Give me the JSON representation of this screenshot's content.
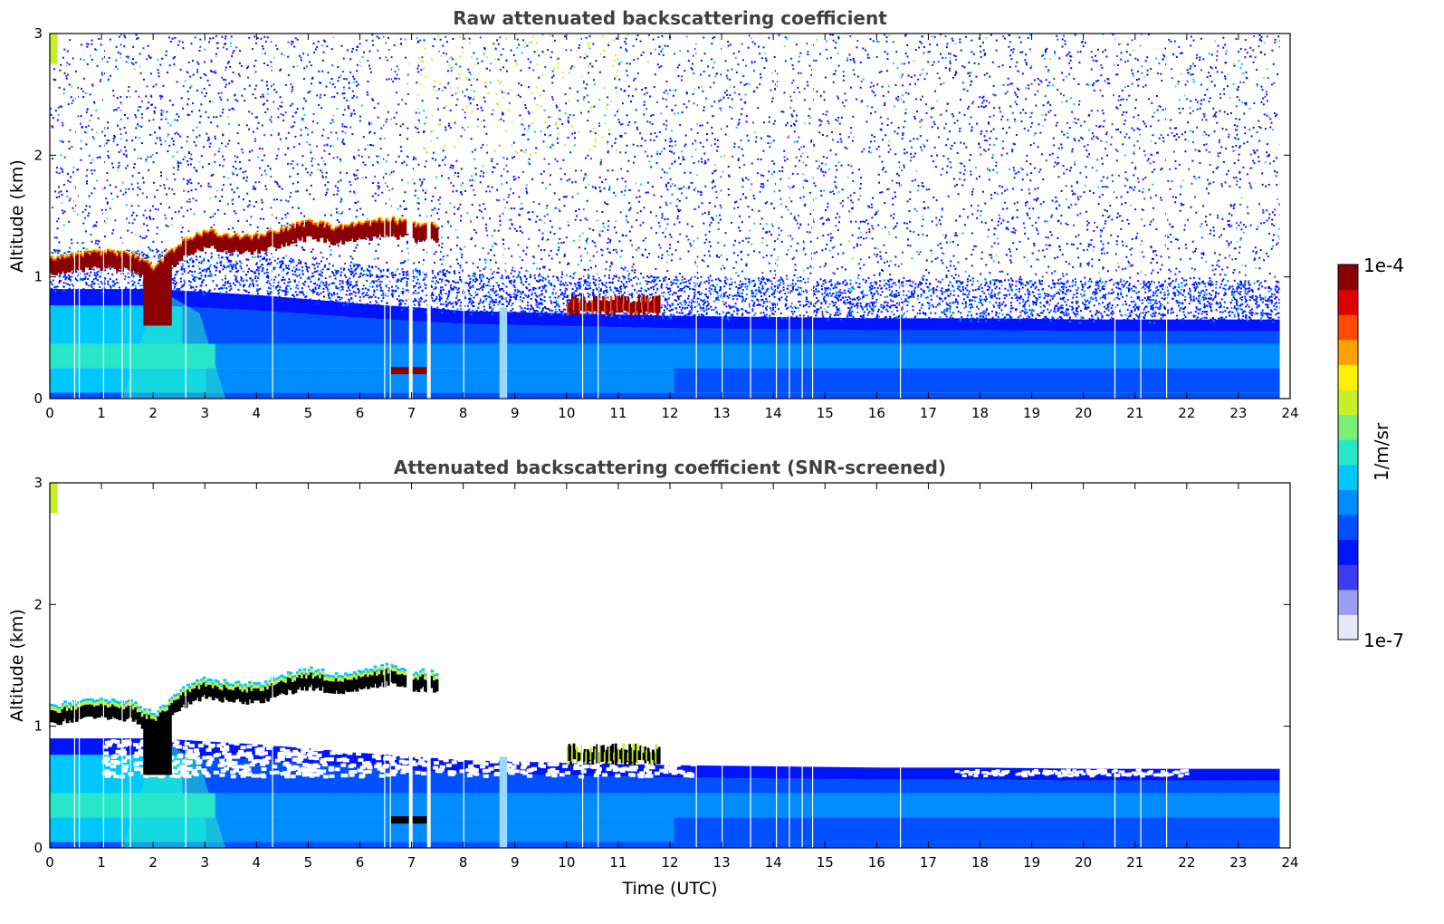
{
  "chart_data": [
    {
      "type": "heatmap",
      "title": "Raw attenuated backscattering coefficient",
      "xlabel": "",
      "ylabel": "Altitude (km)",
      "xlim": [
        0,
        24
      ],
      "ylim": [
        0,
        3
      ],
      "xticks": [
        "0",
        "1",
        "2",
        "3",
        "4",
        "5",
        "6",
        "7",
        "8",
        "9",
        "10",
        "11",
        "12",
        "13",
        "14",
        "15",
        "16",
        "17",
        "18",
        "19",
        "20",
        "21",
        "22",
        "23",
        "24"
      ],
      "yticks": [
        "0",
        "1",
        "2",
        "3"
      ],
      "screened": false,
      "cloud_layer": {
        "x": [
          0,
          0.5,
          1,
          1.5,
          2,
          2.5,
          3,
          3.5,
          4,
          4.5,
          5,
          5.5,
          6,
          6.5,
          7,
          7.5
        ],
        "y": [
          1.02,
          1.05,
          1.07,
          1.06,
          0.95,
          1.15,
          1.25,
          1.2,
          1.2,
          1.27,
          1.32,
          1.28,
          1.3,
          1.35,
          1.3,
          1.3
        ]
      },
      "mid_cloud": {
        "x": [
          10,
          11.8
        ],
        "y": [
          0.68,
          0.86
        ]
      },
      "boundary_layer_top": {
        "x": [
          0,
          2,
          4,
          6,
          8,
          10,
          12,
          14,
          16,
          18,
          20,
          22,
          23.8
        ],
        "y": [
          0.9,
          0.9,
          0.85,
          0.78,
          0.72,
          0.7,
          0.68,
          0.67,
          0.66,
          0.66,
          0.65,
          0.65,
          0.65
        ]
      },
      "data_gaps": [
        0.47,
        0.56,
        1.03,
        1.39,
        1.55,
        2.62,
        4.3,
        6.47,
        6.58,
        6.95,
        7.3,
        8.0,
        8.8,
        10.3,
        10.6,
        12.5,
        13.0,
        13.55,
        14.05,
        14.3,
        14.55,
        14.75,
        16.45,
        20.6,
        21.1,
        21.6
      ],
      "data_end": 23.8
    },
    {
      "type": "heatmap",
      "title": "Attenuated backscattering coefficient (SNR-screened)",
      "xlabel": "Time (UTC)",
      "ylabel": "Altitude (km)",
      "xlim": [
        0,
        24
      ],
      "ylim": [
        0,
        3
      ],
      "xticks": [
        "0",
        "1",
        "2",
        "3",
        "4",
        "5",
        "6",
        "7",
        "8",
        "9",
        "10",
        "11",
        "12",
        "13",
        "14",
        "15",
        "16",
        "17",
        "18",
        "19",
        "20",
        "21",
        "22",
        "23",
        "24"
      ],
      "yticks": [
        "0",
        "1",
        "2",
        "3"
      ],
      "screened": true,
      "cloud_layer": {
        "x": [
          0,
          0.5,
          1,
          1.5,
          2,
          2.5,
          3,
          3.5,
          4,
          4.5,
          5,
          5.5,
          6,
          6.5,
          7,
          7.5
        ],
        "y": [
          1.02,
          1.05,
          1.07,
          1.06,
          0.95,
          1.15,
          1.25,
          1.2,
          1.2,
          1.27,
          1.32,
          1.28,
          1.3,
          1.35,
          1.3,
          1.3
        ]
      },
      "mid_cloud": {
        "x": [
          10,
          11.8
        ],
        "y": [
          0.68,
          0.86
        ]
      },
      "boundary_layer_top": {
        "x": [
          0,
          2,
          4,
          6,
          8,
          10,
          12,
          14,
          16,
          18,
          20,
          22,
          23.8
        ],
        "y": [
          0.9,
          0.9,
          0.85,
          0.78,
          0.72,
          0.7,
          0.68,
          0.67,
          0.66,
          0.66,
          0.65,
          0.65,
          0.65
        ]
      },
      "data_gaps": [
        0.47,
        0.56,
        1.03,
        1.39,
        1.55,
        2.62,
        4.3,
        6.47,
        6.58,
        6.95,
        7.3,
        8.0,
        8.8,
        10.3,
        10.6,
        12.5,
        13.0,
        13.55,
        14.05,
        14.3,
        14.55,
        14.75,
        16.45,
        20.6,
        21.1,
        21.6
      ],
      "data_end": 23.8
    }
  ],
  "colorbar": {
    "min_label": "1e-7",
    "max_label": "1e-4",
    "unit_label": "1/m/sr",
    "scale": "log",
    "colors": [
      "#e8e8f8",
      "#9a9ef0",
      "#3c3cf0",
      "#0014ff",
      "#0050ff",
      "#008cff",
      "#00c8ff",
      "#28e6c8",
      "#78f078",
      "#c8f028",
      "#fff000",
      "#ffa000",
      "#ff4a00",
      "#dc0000",
      "#8b0000"
    ]
  }
}
